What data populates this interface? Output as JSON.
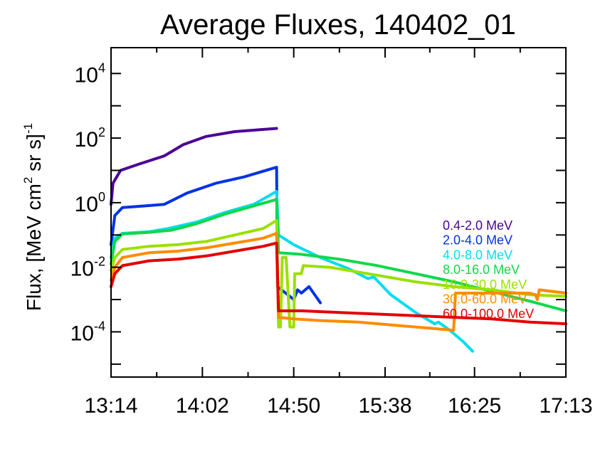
{
  "chart_data": {
    "type": "line",
    "title": "Average Fluxes, 140402_01",
    "ylabel": {
      "main": "Flux, [MeV cm",
      "sup1": "2",
      "mid": " sr s]",
      "sup2": "-1"
    },
    "xlabel": "",
    "y_scale": "log",
    "ylim_exp": [
      -5.4,
      4.8
    ],
    "x_ticks": [
      "13:14",
      "14:02",
      "14:50",
      "15:38",
      "16:25",
      "17:13"
    ],
    "x_tick_minutes": [
      0,
      48,
      96,
      144,
      191,
      239
    ],
    "y_ticks": [
      {
        "base": "10",
        "exp": "4",
        "value": 4
      },
      {
        "base": "10",
        "exp": "2",
        "value": 2
      },
      {
        "base": "10",
        "exp": "0",
        "value": 0
      },
      {
        "base": "10",
        "exp": "-2",
        "value": -2
      },
      {
        "base": "10",
        "exp": "-4",
        "value": -4
      }
    ],
    "grid": false,
    "legend_position": "right",
    "series": [
      {
        "name": "0.4-2.0 MeV",
        "color": "#4b0096",
        "points": [
          [
            0,
            -0.05
          ],
          [
            1,
            0.6
          ],
          [
            5,
            1.0
          ],
          [
            15,
            1.2
          ],
          [
            28,
            1.45
          ],
          [
            38,
            1.8
          ],
          [
            50,
            2.05
          ],
          [
            65,
            2.2
          ],
          [
            87,
            2.3
          ]
        ]
      },
      {
        "name": "2.0-4.0 MeV",
        "color": "#0032e6",
        "points": [
          [
            0,
            -1.3
          ],
          [
            2,
            -0.4
          ],
          [
            6,
            -0.15
          ],
          [
            18,
            -0.1
          ],
          [
            28,
            -0.05
          ],
          [
            40,
            0.3
          ],
          [
            55,
            0.6
          ],
          [
            70,
            0.8
          ],
          [
            87,
            1.1
          ],
          [
            87.5,
            -2.6
          ],
          [
            96,
            -3.0
          ],
          [
            98,
            -2.7
          ],
          [
            100,
            -2.8
          ],
          [
            104,
            -2.6
          ],
          [
            110,
            -3.1
          ]
        ]
      },
      {
        "name": "4.0-8.0 MeV",
        "color": "#00dcf0",
        "points": [
          [
            0,
            -1.7
          ],
          [
            2,
            -1.1
          ],
          [
            6,
            -0.95
          ],
          [
            20,
            -0.9
          ],
          [
            30,
            -0.8
          ],
          [
            45,
            -0.6
          ],
          [
            60,
            -0.3
          ],
          [
            75,
            -0.05
          ],
          [
            87,
            0.35
          ],
          [
            88,
            -1.0
          ],
          [
            96,
            -1.3
          ],
          [
            110,
            -1.7
          ],
          [
            125,
            -2.05
          ],
          [
            135,
            -2.35
          ],
          [
            138,
            -2.3
          ],
          [
            147,
            -2.85
          ],
          [
            160,
            -3.4
          ],
          [
            170,
            -3.75
          ],
          [
            172,
            -3.7
          ],
          [
            178,
            -3.95
          ],
          [
            185,
            -4.3
          ],
          [
            190,
            -4.6
          ]
        ]
      },
      {
        "name": "8.0-16.0 MeV",
        "color": "#10d84a",
        "points": [
          [
            0,
            -1.9
          ],
          [
            2,
            -1.2
          ],
          [
            6,
            -0.97
          ],
          [
            20,
            -0.92
          ],
          [
            32,
            -0.85
          ],
          [
            45,
            -0.65
          ],
          [
            60,
            -0.35
          ],
          [
            75,
            -0.1
          ],
          [
            87,
            0.1
          ],
          [
            88,
            -1.55
          ],
          [
            100,
            -1.6
          ],
          [
            120,
            -1.75
          ],
          [
            140,
            -1.95
          ],
          [
            160,
            -2.2
          ],
          [
            180,
            -2.45
          ],
          [
            200,
            -2.75
          ],
          [
            220,
            -3.05
          ],
          [
            239,
            -3.35
          ]
        ]
      },
      {
        "name": "16.0-30.0 MeV",
        "color": "#9be000",
        "points": [
          [
            0,
            -2.1
          ],
          [
            2,
            -1.7
          ],
          [
            6,
            -1.45
          ],
          [
            20,
            -1.35
          ],
          [
            35,
            -1.3
          ],
          [
            50,
            -1.2
          ],
          [
            65,
            -1.0
          ],
          [
            80,
            -0.8
          ],
          [
            87,
            -0.55
          ],
          [
            88,
            -3.85
          ],
          [
            89,
            -3.85
          ],
          [
            90,
            -1.7
          ],
          [
            92,
            -1.7
          ],
          [
            94,
            -3.85
          ],
          [
            96,
            -3.85
          ],
          [
            96.5,
            -2.2
          ],
          [
            100,
            -2.2
          ],
          [
            101,
            -1.95
          ],
          [
            115,
            -2.0
          ],
          [
            140,
            -2.25
          ],
          [
            160,
            -2.45
          ],
          [
            180,
            -2.6
          ],
          [
            200,
            -2.7
          ],
          [
            220,
            -2.85
          ],
          [
            239,
            -2.9
          ]
        ]
      },
      {
        "name": "30.0-60.0 MeV",
        "color": "#ff8c00",
        "points": [
          [
            0,
            -2.4
          ],
          [
            2,
            -2.0
          ],
          [
            6,
            -1.7
          ],
          [
            20,
            -1.55
          ],
          [
            35,
            -1.5
          ],
          [
            50,
            -1.4
          ],
          [
            65,
            -1.25
          ],
          [
            80,
            -1.1
          ],
          [
            87,
            -0.95
          ],
          [
            88,
            -3.55
          ],
          [
            96,
            -3.6
          ],
          [
            110,
            -3.65
          ],
          [
            130,
            -3.7
          ],
          [
            150,
            -3.8
          ],
          [
            170,
            -3.9
          ],
          [
            180,
            -3.95
          ],
          [
            181,
            -2.8
          ],
          [
            200,
            -2.8
          ],
          [
            220,
            -2.8
          ],
          [
            223,
            -2.85
          ],
          [
            224,
            -3.0
          ],
          [
            225,
            -2.7
          ],
          [
            239,
            -2.8
          ]
        ]
      },
      {
        "name": "60.0-100.0 MeV",
        "color": "#e30000",
        "points": [
          [
            0,
            -2.6
          ],
          [
            2,
            -2.2
          ],
          [
            6,
            -1.95
          ],
          [
            20,
            -1.8
          ],
          [
            35,
            -1.75
          ],
          [
            50,
            -1.65
          ],
          [
            65,
            -1.5
          ],
          [
            80,
            -1.35
          ],
          [
            87,
            -1.25
          ],
          [
            88,
            -3.35
          ],
          [
            100,
            -3.35
          ],
          [
            120,
            -3.4
          ],
          [
            140,
            -3.45
          ],
          [
            160,
            -3.5
          ],
          [
            180,
            -3.55
          ],
          [
            200,
            -3.6
          ],
          [
            220,
            -3.7
          ],
          [
            239,
            -3.75
          ]
        ]
      }
    ]
  }
}
